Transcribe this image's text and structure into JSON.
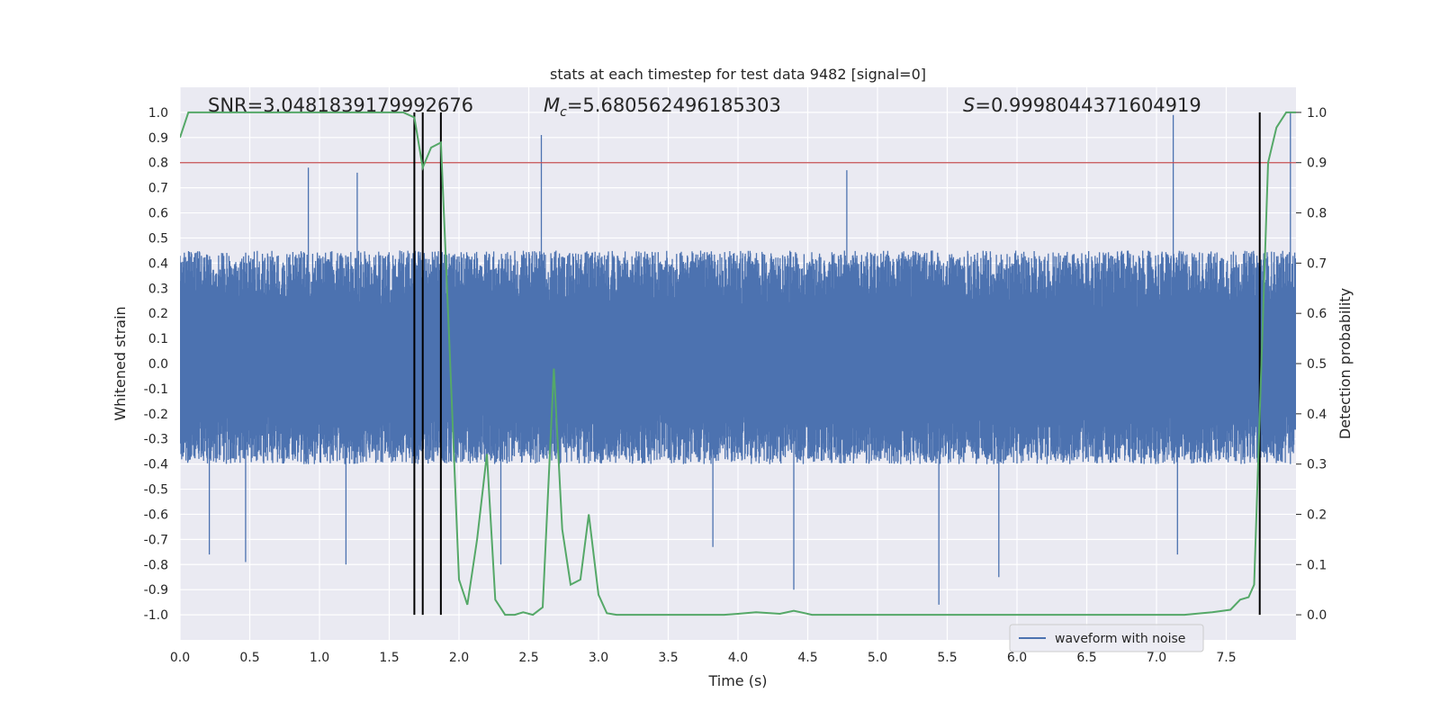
{
  "chart_data": {
    "type": "line",
    "title": "stats at each timestep for test data 9482 [signal=0]",
    "xlabel": "Time (s)",
    "ylabel_left": "Whitened strain",
    "ylabel_right": "Detection probability",
    "xlim": [
      0,
      8
    ],
    "ylim_left": [
      -1.1,
      1.1
    ],
    "ylim_right": [
      -0.05,
      1.05
    ],
    "grid": true,
    "legend_placement": "bottom-right",
    "x_ticks": [
      0.0,
      0.5,
      1.0,
      1.5,
      2.0,
      2.5,
      3.0,
      3.5,
      4.0,
      4.5,
      5.0,
      5.5,
      6.0,
      6.5,
      7.0,
      7.5
    ],
    "x_tick_labels": [
      "0.0",
      "0.5",
      "1.0",
      "1.5",
      "2.0",
      "2.5",
      "3.0",
      "3.5",
      "4.0",
      "4.5",
      "5.0",
      "5.5",
      "6.0",
      "6.5",
      "7.0",
      "7.5"
    ],
    "y_left_ticks": [
      1.0,
      0.9,
      0.8,
      0.7,
      0.6,
      0.5,
      0.4,
      0.3,
      0.2,
      0.1,
      0.0,
      -0.1,
      -0.2,
      -0.3,
      -0.4,
      -0.5,
      -0.6,
      -0.7,
      -0.8,
      -0.9,
      -1.0
    ],
    "y_left_tick_labels": [
      "1.0",
      "0.9",
      "0.8",
      "0.7",
      "0.6",
      "0.5",
      "0.4",
      "0.3",
      "0.2",
      "0.1",
      "0.0",
      "-0.1",
      "-0.2",
      "-0.3",
      "-0.4",
      "-0.5",
      "-0.6",
      "-0.7",
      "-0.8",
      "-0.9",
      "-1.0"
    ],
    "y_right_ticks": [
      1.0,
      0.9,
      0.8,
      0.7,
      0.6,
      0.5,
      0.4,
      0.3,
      0.2,
      0.1,
      0.0
    ],
    "y_right_tick_labels": [
      "1.0",
      "0.9",
      "0.8",
      "0.7",
      "0.6",
      "0.5",
      "0.4",
      "0.3",
      "0.2",
      "0.1",
      "0.0"
    ],
    "annotations": {
      "snr": "SNR=3.0481839179992676",
      "mc_symbol": "M",
      "mc_subscript": "c",
      "mc_value": "=5.680562496185303",
      "s_symbol": "S",
      "s_value": "=0.9998044371604919"
    },
    "threshold_line": {
      "y_right": 0.9,
      "color": "#c44e52"
    },
    "vertical_lines": {
      "x": [
        1.68,
        1.74,
        1.87,
        7.74
      ],
      "y_right_range": [
        0.0,
        1.0
      ],
      "color": "#000000"
    },
    "series": [
      {
        "name": "waveform with noise",
        "axis": "left",
        "color": "#4c72b0",
        "kind": "noise",
        "envelope": [
          -0.4,
          0.45
        ],
        "spikes": [
          {
            "x": 0.92,
            "y": 0.78
          },
          {
            "x": 1.27,
            "y": 0.76
          },
          {
            "x": 2.59,
            "y": 0.91
          },
          {
            "x": 4.78,
            "y": 0.77
          },
          {
            "x": 7.12,
            "y": 0.99
          },
          {
            "x": 7.96,
            "y": 1.0
          },
          {
            "x": 0.21,
            "y": -0.76
          },
          {
            "x": 0.47,
            "y": -0.79
          },
          {
            "x": 1.19,
            "y": -0.8
          },
          {
            "x": 2.3,
            "y": -0.8
          },
          {
            "x": 3.82,
            "y": -0.73
          },
          {
            "x": 4.4,
            "y": -0.9
          },
          {
            "x": 5.44,
            "y": -0.96
          },
          {
            "x": 5.87,
            "y": -0.85
          },
          {
            "x": 7.15,
            "y": -0.76
          }
        ]
      },
      {
        "name": "",
        "axis": "right",
        "color": "#55a868",
        "x": [
          0.0,
          0.06,
          0.12,
          0.2,
          0.3,
          0.4,
          0.5,
          0.6,
          0.7,
          0.8,
          0.9,
          1.0,
          1.1,
          1.2,
          1.3,
          1.4,
          1.5,
          1.6,
          1.68,
          1.74,
          1.8,
          1.87,
          1.93,
          2.0,
          2.06,
          2.13,
          2.2,
          2.26,
          2.33,
          2.4,
          2.46,
          2.53,
          2.6,
          2.68,
          2.74,
          2.8,
          2.87,
          2.93,
          3.0,
          3.06,
          3.13,
          3.3,
          3.5,
          3.7,
          3.9,
          4.0,
          4.13,
          4.3,
          4.4,
          4.53,
          4.7,
          4.9,
          5.0,
          5.2,
          5.4,
          5.6,
          5.8,
          6.0,
          6.2,
          6.4,
          6.6,
          6.8,
          7.0,
          7.2,
          7.4,
          7.53,
          7.6,
          7.66,
          7.7,
          7.74,
          7.8,
          7.86,
          7.93,
          8.0
        ],
        "values": [
          0.95,
          1.0,
          1.0,
          1.0,
          1.0,
          1.0,
          1.0,
          1.0,
          1.0,
          1.0,
          1.0,
          1.0,
          1.0,
          1.0,
          1.0,
          1.0,
          1.0,
          1.0,
          0.99,
          0.89,
          0.93,
          0.94,
          0.55,
          0.07,
          0.02,
          0.15,
          0.32,
          0.03,
          0.0,
          0.0,
          0.005,
          0.0,
          0.015,
          0.49,
          0.17,
          0.06,
          0.07,
          0.2,
          0.04,
          0.003,
          0.0,
          0.0,
          0.0,
          0.0,
          0.0,
          0.002,
          0.005,
          0.002,
          0.008,
          0.0,
          0.0,
          0.0,
          0.0,
          0.0,
          0.0,
          0.0,
          0.0,
          0.0,
          0.0,
          0.0,
          0.0,
          0.0,
          0.0,
          0.0,
          0.005,
          0.01,
          0.03,
          0.035,
          0.06,
          0.4,
          0.9,
          0.97,
          1.0,
          1.0
        ]
      }
    ]
  }
}
